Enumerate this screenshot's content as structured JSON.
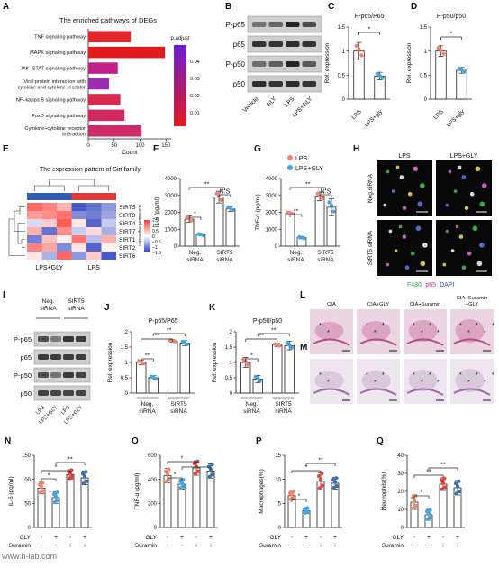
{
  "panel_letters": [
    "A",
    "B",
    "C",
    "D",
    "E",
    "F",
    "G",
    "H",
    "I",
    "J",
    "K",
    "L",
    "M",
    "N",
    "O",
    "P",
    "Q"
  ],
  "colors": {
    "red": "#e8413c",
    "blue": "#3a86c8",
    "lps_dot": "#f2836f",
    "gly_dot": "#42a5e6",
    "bar_gradient_top": "#e31a1c",
    "bar_gradient_bottom": "#6a1fd0"
  },
  "panel_A": {
    "title": "The enriched pathways of DEGs",
    "xlabel": "Count",
    "legend_title": "p.adjust",
    "legend_ticks": [
      "0.04",
      "0.03",
      "0.02",
      "0.01"
    ],
    "chart_data": {
      "type": "bar",
      "orientation": "horizontal",
      "categories": [
        "TNF signaling pathway",
        "MAPK signaling pathway",
        "JAK–STAT signaling pathway",
        "Viral protein interaction with cytokine and cytokine receptor",
        "NF–kappa B signaling pathway",
        "FoxO signaling pathway",
        "Cytokine–cytokine receptor interaction"
      ],
      "values": [
        82,
        148,
        57,
        40,
        62,
        70,
        103
      ],
      "xlim": [
        0,
        160
      ],
      "xticks": [
        0,
        50,
        100,
        150
      ]
    }
  },
  "panel_B": {
    "blot_labels": [
      "P-p65",
      "p65",
      "P-p50",
      "p50"
    ],
    "lane_labels": [
      "Vehicle",
      "GLY",
      "LPS",
      "LPS+GLY"
    ]
  },
  "panel_C": {
    "title": "P-p65/P65",
    "ylabel": "Rel. expression",
    "sig": [
      "*"
    ],
    "chart_data": {
      "type": "bar",
      "categories": [
        "LPS",
        "LPS+gly"
      ],
      "values": [
        1.0,
        0.48
      ],
      "errors": [
        0.18,
        0.08
      ],
      "ylim": [
        0,
        1.5
      ],
      "yticks": [
        0.0,
        0.5,
        1.0,
        1.5
      ]
    }
  },
  "panel_D": {
    "title": "P-p50/p50",
    "ylabel": "Rel. expression",
    "sig": [
      "*"
    ],
    "chart_data": {
      "type": "bar",
      "categories": [
        "LPS",
        "LPS+gly"
      ],
      "values": [
        1.0,
        0.6
      ],
      "errors": [
        0.11,
        0.06
      ],
      "ylim": [
        0,
        1.5
      ],
      "yticks": [
        0.0,
        0.5,
        1.0,
        1.5
      ]
    }
  },
  "panel_E": {
    "title": "The expression pattern of Sirt family",
    "row_labels": [
      "SIRT5",
      "SIRT3",
      "SIRT4",
      "SIRT7",
      "SIRT1",
      "SIRT2",
      "SIRT6"
    ],
    "group_labels": [
      "LPS+GLY",
      "LPS"
    ],
    "legend_title": "Normalized expression",
    "legend_ticks": [
      "1.5",
      "1",
      "0.5",
      "0",
      "−0.5",
      "−1",
      "−1.5"
    ],
    "chart_data": {
      "type": "heatmap",
      "rows": [
        "SIRT5",
        "SIRT3",
        "SIRT4",
        "SIRT7",
        "SIRT1",
        "SIRT2",
        "SIRT6"
      ],
      "values": [
        [
          1.2,
          1.0,
          0.6,
          -1.3,
          -1.1,
          -0.8
        ],
        [
          0.8,
          0.9,
          1.1,
          -0.9,
          -1.0,
          -0.7
        ],
        [
          -0.3,
          0.4,
          1.3,
          0.2,
          -1.2,
          -0.4
        ],
        [
          0.6,
          -1.1,
          0.9,
          -0.4,
          0.3,
          -0.6
        ],
        [
          -1.0,
          0.5,
          0.1,
          1.1,
          -0.5,
          0.6
        ],
        [
          1.0,
          0.7,
          -0.9,
          0.2,
          -1.2,
          0.1
        ],
        [
          0.2,
          -0.6,
          1.2,
          -0.8,
          0.4,
          -1.3
        ]
      ],
      "range": [
        -1.5,
        1.5
      ]
    }
  },
  "panel_F": {
    "ylabel": "IL-6 (pg/ml)",
    "groups": [
      "Neg. siRNA",
      "SIRT5 siRNA"
    ],
    "sig": [
      "*",
      "**",
      "N.S"
    ],
    "chart_data": {
      "type": "bar",
      "series": [
        {
          "name": "LPS",
          "values": [
            1600,
            2900
          ],
          "errors": [
            180,
            350
          ]
        },
        {
          "name": "LPS+GLY",
          "values": [
            680,
            2200
          ],
          "errors": [
            60,
            150
          ]
        }
      ],
      "ylim": [
        0,
        4000
      ],
      "yticks": [
        0,
        1000,
        2000,
        3000,
        4000
      ]
    }
  },
  "panel_G": {
    "ylabel": "TNF-α (pg/ml)",
    "groups": [
      "Neg. siRNA",
      "SIRT5 siRNA"
    ],
    "sig": [
      "**",
      "**",
      "N.S"
    ],
    "legend": [
      "LPS",
      "LPS+GLY"
    ],
    "chart_data": {
      "type": "bar",
      "series": [
        {
          "name": "LPS",
          "values": [
            1950,
            2950
          ],
          "errors": [
            60,
            250
          ]
        },
        {
          "name": "LPS+GLY",
          "values": [
            500,
            2300
          ],
          "errors": [
            70,
            500
          ]
        }
      ],
      "ylim": [
        0,
        4000
      ],
      "yticks": [
        0,
        1000,
        2000,
        3000,
        4000
      ]
    }
  },
  "panel_H": {
    "col_labels": [
      "LPS",
      "LPS+GLY"
    ],
    "row_labels": [
      "Neg.siRNA",
      "SIRT5 siRNA"
    ],
    "legend_parts": [
      "F480",
      "p65",
      "DAPI"
    ]
  },
  "panel_I": {
    "col_labels": [
      "Neg. siRNA",
      "SIRT5 siRNA"
    ],
    "blot_labels": [
      "P-p65",
      "p65",
      "P-p50",
      "p50"
    ],
    "lane_labels": [
      "LPS",
      "LPS+GLY",
      "LPS",
      "LPS+GLY"
    ]
  },
  "panel_J": {
    "title": "P-p65/P65",
    "ylabel": "Rel. expression",
    "groups": [
      "Neg. siRNA",
      "SIRT5 siRNA"
    ],
    "sig": [
      "**",
      "**",
      "**"
    ],
    "chart_data": {
      "type": "bar",
      "series": [
        {
          "name": "LPS",
          "values": [
            1.0,
            1.7
          ],
          "errors": [
            0.08,
            0.04
          ]
        },
        {
          "name": "LPS+GLY",
          "values": [
            0.5,
            1.63
          ],
          "errors": [
            0.07,
            0.08
          ]
        }
      ],
      "ylim": [
        0,
        2.0
      ],
      "yticks": [
        0.0,
        0.5,
        1.0,
        1.5,
        2.0
      ]
    }
  },
  "panel_K": {
    "title": "P-p50/p50",
    "ylabel": "Rel. expression",
    "groups": [
      "Neg. siRNA",
      "SIRT5 siRNA"
    ],
    "sig": [
      "*",
      "**",
      "**"
    ],
    "chart_data": {
      "type": "bar",
      "series": [
        {
          "name": "LPS",
          "values": [
            1.0,
            1.57
          ],
          "errors": [
            0.16,
            0.05
          ]
        },
        {
          "name": "LPS+GLY",
          "values": [
            0.46,
            1.55
          ],
          "errors": [
            0.12,
            0.14
          ]
        }
      ],
      "ylim": [
        0,
        2.0
      ],
      "yticks": [
        0.0,
        0.5,
        1.0,
        1.5,
        2.0
      ]
    }
  },
  "panel_L": {
    "col_labels": [
      "CIA",
      "CIA+GLY",
      "CIA+Suramin",
      "CIA+Suramin +GLY"
    ]
  },
  "panel_N": {
    "ylabel": "IL-6 (pg/ml)",
    "row_labels": [
      "GLY",
      "Suramin"
    ],
    "signs": [
      [
        "-",
        "+",
        "-",
        "+"
      ],
      [
        "-",
        "-",
        "+",
        "+"
      ]
    ],
    "sig": [
      "*",
      "*",
      "**"
    ],
    "chart_data": {
      "type": "bar",
      "categories": [
        "1",
        "2",
        "3",
        "4"
      ],
      "values": [
        82,
        62,
        110,
        103
      ],
      "errors": [
        12,
        12,
        10,
        14
      ],
      "ylim": [
        0,
        150
      ],
      "yticks": [
        0,
        50,
        100,
        150
      ]
    }
  },
  "panel_O": {
    "ylabel": "TNF-α (pg/ml)",
    "row_labels": [
      "GLY",
      "Suramin"
    ],
    "signs": [
      [
        "-",
        "+",
        "-",
        "+"
      ],
      [
        "-",
        "-",
        "+",
        "+"
      ]
    ],
    "sig": [
      "*",
      "*",
      "**"
    ],
    "chart_data": {
      "type": "bar",
      "categories": [
        "1",
        "2",
        "3",
        "4"
      ],
      "values": [
        430,
        360,
        495,
        470
      ],
      "errors": [
        60,
        40,
        60,
        60
      ],
      "ylim": [
        0,
        600
      ],
      "yticks": [
        0,
        200,
        400,
        600
      ]
    }
  },
  "panel_P": {
    "ylabel": "Macrophages(%)",
    "row_labels": [
      "GLY",
      "Suramin"
    ],
    "signs": [
      [
        "-",
        "+",
        "-",
        "+"
      ],
      [
        "-",
        "-",
        "+",
        "+"
      ]
    ],
    "sig": [
      "*",
      "*",
      "**"
    ],
    "chart_data": {
      "type": "bar",
      "categories": [
        "1",
        "2",
        "3",
        "4"
      ],
      "values": [
        6.6,
        3.5,
        9.6,
        9.2
      ],
      "errors": [
        0.9,
        0.6,
        1.8,
        1.2
      ],
      "ylim": [
        0,
        15
      ],
      "yticks": [
        0,
        5,
        10,
        15
      ]
    }
  },
  "panel_Q": {
    "ylabel": "Neutrophils(%)",
    "row_labels": [
      "GLY",
      "Suramin"
    ],
    "signs": [
      [
        "-",
        "+",
        "-",
        "+"
      ],
      [
        "-",
        "-",
        "+",
        "+"
      ]
    ],
    "sig": [
      "*",
      "**",
      "**"
    ],
    "chart_data": {
      "type": "bar",
      "categories": [
        "1",
        "2",
        "3",
        "4"
      ],
      "values": [
        14,
        7,
        24,
        22
      ],
      "errors": [
        4,
        3,
        3.5,
        4
      ],
      "ylim": [
        0,
        40
      ],
      "yticks": [
        0,
        10,
        20,
        30,
        40
      ]
    }
  },
  "watermark": "www.h-lab.com"
}
